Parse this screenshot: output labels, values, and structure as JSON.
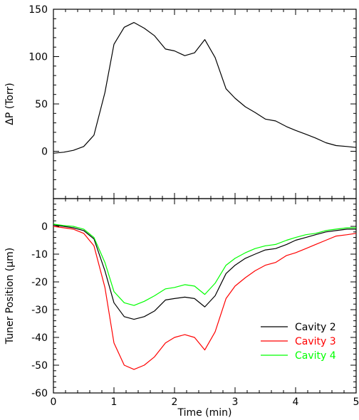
{
  "chart_data": [
    {
      "type": "line",
      "ylabel": "ΔP (Torr)",
      "xlim": [
        0,
        5
      ],
      "ylim": [
        -50,
        150
      ],
      "yticks": [
        0,
        50,
        100,
        150
      ],
      "grid": false,
      "series": [
        {
          "color": "#000000",
          "x": [
            0,
            0.17,
            0.33,
            0.5,
            0.67,
            0.85,
            1.0,
            1.17,
            1.33,
            1.5,
            1.67,
            1.85,
            2.0,
            2.17,
            2.33,
            2.5,
            2.67,
            2.85,
            3.0,
            3.17,
            3.33,
            3.5,
            3.67,
            3.85,
            4.0,
            4.17,
            4.33,
            4.5,
            4.67,
            4.85,
            5.0
          ],
          "values": [
            -2,
            -1,
            1,
            5,
            17,
            62,
            113,
            131,
            136,
            130,
            122,
            108,
            106,
            101,
            104,
            118,
            99,
            66,
            56,
            47,
            41,
            34,
            32,
            26,
            22,
            18,
            14,
            9,
            6,
            5,
            4
          ]
        }
      ]
    },
    {
      "type": "line",
      "xlabel": "Time (min)",
      "ylabel": "Tuner Position (μm)",
      "xlim": [
        0,
        5
      ],
      "ylim": [
        -60,
        10
      ],
      "xticks": [
        0,
        1,
        2,
        3,
        4,
        5
      ],
      "yticks": [
        -60,
        -50,
        -40,
        -30,
        -20,
        -10,
        0
      ],
      "grid": false,
      "legend_position": "bottom-right",
      "series": [
        {
          "name": "Cavity 2",
          "color": "#000000",
          "x": [
            0,
            0.17,
            0.33,
            0.5,
            0.67,
            0.85,
            1.0,
            1.17,
            1.33,
            1.5,
            1.67,
            1.85,
            2.0,
            2.17,
            2.33,
            2.5,
            2.67,
            2.85,
            3.0,
            3.17,
            3.33,
            3.5,
            3.67,
            3.85,
            4.0,
            4.17,
            4.33,
            4.5,
            4.67,
            4.85,
            5.0
          ],
          "values": [
            0.5,
            0,
            -0.5,
            -1.5,
            -4.5,
            -16,
            -27.5,
            -32.5,
            -33.5,
            -32.5,
            -30.5,
            -26.5,
            -26,
            -25.5,
            -26,
            -29,
            -25,
            -17,
            -14,
            -11.5,
            -10,
            -8.5,
            -8,
            -6.5,
            -5,
            -4,
            -3,
            -2,
            -1.5,
            -1,
            -1
          ]
        },
        {
          "name": "Cavity 3",
          "color": "#ff0000",
          "x": [
            0,
            0.17,
            0.33,
            0.5,
            0.67,
            0.85,
            1.0,
            1.17,
            1.33,
            1.5,
            1.67,
            1.85,
            2.0,
            2.17,
            2.33,
            2.5,
            2.67,
            2.85,
            3.0,
            3.17,
            3.33,
            3.5,
            3.67,
            3.85,
            4.0,
            4.17,
            4.33,
            4.5,
            4.67,
            4.85,
            5.0
          ],
          "values": [
            0,
            -0.5,
            -1,
            -2.5,
            -7,
            -22,
            -42,
            -50,
            -51.5,
            -50,
            -47,
            -42,
            -40,
            -39,
            -40,
            -44.5,
            -38,
            -26,
            -21.5,
            -18.5,
            -16,
            -14,
            -13,
            -10.5,
            -9.5,
            -8,
            -6.5,
            -5,
            -3.5,
            -3,
            -2.5
          ]
        },
        {
          "name": "Cavity 4",
          "color": "#00ff00",
          "x": [
            0,
            0.17,
            0.33,
            0.5,
            0.67,
            0.85,
            1.0,
            1.17,
            1.33,
            1.5,
            1.67,
            1.85,
            2.0,
            2.17,
            2.33,
            2.5,
            2.67,
            2.85,
            3.0,
            3.17,
            3.33,
            3.5,
            3.67,
            3.85,
            4.0,
            4.17,
            4.33,
            4.5,
            4.67,
            4.85,
            5.0
          ],
          "values": [
            0.8,
            0.3,
            0,
            -1,
            -4,
            -13,
            -23.5,
            -27.5,
            -28.5,
            -27,
            -25,
            -22.5,
            -22,
            -21,
            -21.5,
            -24.5,
            -20.5,
            -14,
            -11.5,
            -9.5,
            -8,
            -7,
            -6.5,
            -5,
            -4,
            -3,
            -2.5,
            -1.5,
            -1,
            -0.5,
            -0.5
          ]
        }
      ]
    }
  ]
}
